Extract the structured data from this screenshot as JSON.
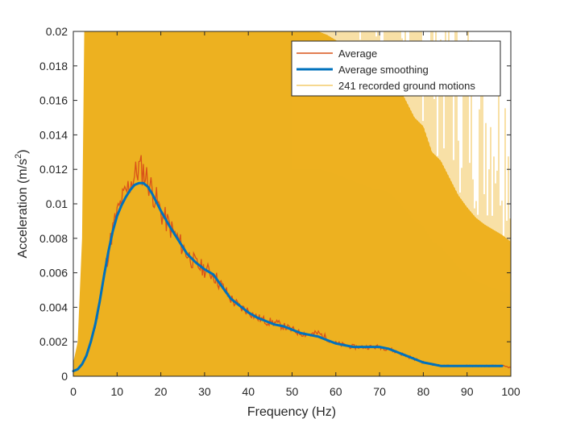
{
  "chart_data": {
    "type": "line",
    "xlabel": "Frequency (Hz)",
    "ylabel": "Acceleration (m/s",
    "ylabel_sup": "2",
    "ylabel_close": ")",
    "xlim": [
      0,
      100
    ],
    "ylim": [
      0,
      0.02
    ],
    "x_ticks": [
      0,
      10,
      20,
      30,
      40,
      50,
      60,
      70,
      80,
      90,
      100
    ],
    "x_tick_labels": [
      "0",
      "10",
      "20",
      "30",
      "40",
      "50",
      "60",
      "70",
      "80",
      "90",
      "100"
    ],
    "y_ticks": [
      0,
      0.002,
      0.004,
      0.006,
      0.008,
      0.01,
      0.012,
      0.014,
      0.016,
      0.018,
      0.02
    ],
    "y_tick_labels": [
      "0",
      "0.002",
      "0.004",
      "0.006",
      "0.008",
      "0.01",
      "0.012",
      "0.014",
      "0.016",
      "0.018",
      "0.02"
    ],
    "grid": false,
    "legend_position": "top-right",
    "series": [
      {
        "name": "Average",
        "color": "#D95319",
        "style": "thin-line",
        "x": [
          0,
          1,
          2,
          3,
          4,
          5,
          6,
          7,
          8,
          9,
          10,
          11,
          12,
          13,
          14,
          15,
          16,
          17,
          18,
          19,
          20,
          22,
          24,
          26,
          28,
          30,
          32,
          34,
          36,
          38,
          40,
          42,
          44,
          46,
          48,
          50,
          52,
          54,
          56,
          58,
          60,
          62,
          64,
          66,
          68,
          70,
          72,
          74,
          76,
          78,
          80,
          82,
          84,
          86,
          88,
          90,
          92,
          94,
          96,
          98,
          100
        ],
        "values": [
          0.0003,
          0.0004,
          0.0007,
          0.0012,
          0.002,
          0.003,
          0.0043,
          0.0058,
          0.0072,
          0.0085,
          0.0094,
          0.0101,
          0.0106,
          0.0112,
          0.0116,
          0.0121,
          0.0119,
          0.0114,
          0.0108,
          0.0102,
          0.0095,
          0.0087,
          0.0079,
          0.0071,
          0.0065,
          0.0062,
          0.0059,
          0.0052,
          0.0045,
          0.004,
          0.0038,
          0.0034,
          0.0032,
          0.0031,
          0.0029,
          0.0027,
          0.0025,
          0.0024,
          0.0025,
          0.0022,
          0.0019,
          0.0018,
          0.0017,
          0.0017,
          0.0017,
          0.0017,
          0.0016,
          0.0014,
          0.0012,
          0.001,
          0.0008,
          0.0007,
          0.0006,
          0.0006,
          0.0006,
          0.0006,
          0.0006,
          0.0006,
          0.0006,
          0.0006,
          0.0005
        ]
      },
      {
        "name": "Average smoothing",
        "color": "#0072BD",
        "style": "thick-line",
        "x": [
          0,
          1,
          2,
          3,
          4,
          5,
          6,
          7,
          8,
          9,
          10,
          11,
          12,
          13,
          14,
          15,
          16,
          17,
          18,
          19,
          20,
          22,
          24,
          26,
          28,
          30,
          32,
          34,
          36,
          38,
          40,
          42,
          44,
          46,
          48,
          50,
          52,
          54,
          56,
          58,
          60,
          62,
          64,
          66,
          68,
          70,
          72,
          74,
          76,
          78,
          80,
          82,
          84,
          86,
          88,
          90,
          92,
          94,
          96,
          98
        ],
        "values": [
          0.0003,
          0.0004,
          0.0007,
          0.0012,
          0.002,
          0.003,
          0.0043,
          0.0058,
          0.0072,
          0.0084,
          0.0093,
          0.0099,
          0.0104,
          0.0108,
          0.0111,
          0.0112,
          0.0112,
          0.011,
          0.0106,
          0.0101,
          0.0096,
          0.0087,
          0.0079,
          0.0071,
          0.0066,
          0.0062,
          0.0059,
          0.0052,
          0.0045,
          0.0041,
          0.0037,
          0.0034,
          0.0032,
          0.003,
          0.0029,
          0.0027,
          0.0025,
          0.0024,
          0.0023,
          0.0021,
          0.0019,
          0.0018,
          0.0017,
          0.0017,
          0.0017,
          0.0017,
          0.0016,
          0.0014,
          0.0012,
          0.001,
          0.0008,
          0.0007,
          0.0006,
          0.0006,
          0.0006,
          0.0006,
          0.0006,
          0.0006,
          0.0006,
          0.0006
        ]
      },
      {
        "name": "241 recorded ground motions",
        "color": "#EDB120",
        "style": "dense-band",
        "x": [
          0,
          1,
          2,
          2.5,
          3,
          4,
          5,
          10,
          20,
          30,
          40,
          50,
          52,
          54,
          56,
          58,
          60,
          62,
          64,
          66,
          68,
          70,
          72,
          74,
          76,
          78,
          80,
          82,
          84,
          86,
          88,
          90,
          92,
          94,
          96,
          98,
          100
        ],
        "values": [
          0.0008,
          0.002,
          0.008,
          0.02,
          0.02,
          0.02,
          0.02,
          0.02,
          0.02,
          0.02,
          0.02,
          0.02,
          0.02,
          0.02,
          0.02,
          0.0198,
          0.0195,
          0.0192,
          0.0188,
          0.0185,
          0.0182,
          0.018,
          0.0178,
          0.017,
          0.016,
          0.015,
          0.0145,
          0.013,
          0.0125,
          0.0115,
          0.0105,
          0.0098,
          0.0092,
          0.0088,
          0.0085,
          0.0082,
          0.0078
        ]
      }
    ]
  }
}
